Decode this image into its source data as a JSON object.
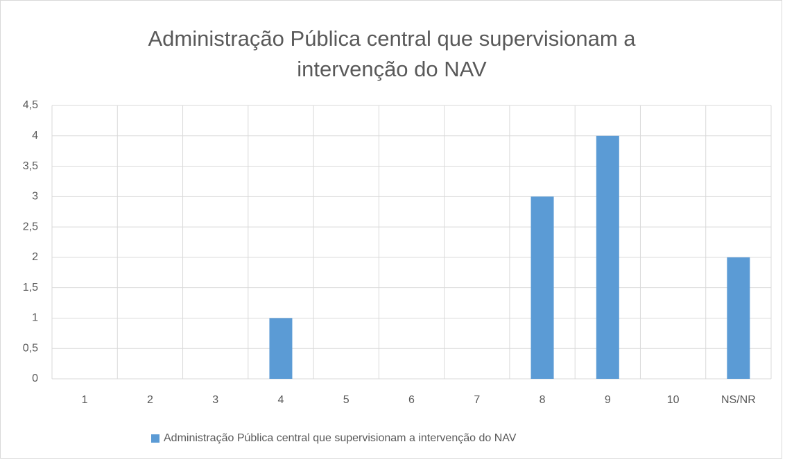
{
  "chart_data": {
    "type": "bar",
    "title": "Administração Pública central que supervisionam a intervenção do NAV",
    "categories": [
      "1",
      "2",
      "3",
      "4",
      "5",
      "6",
      "7",
      "8",
      "9",
      "10",
      "NS/NR"
    ],
    "series": [
      {
        "name": "Administração Pública central que supervisionam a intervenção do NAV",
        "color": "#5b9bd5",
        "values": [
          0,
          0,
          0,
          1,
          0,
          0,
          0,
          3,
          4,
          0,
          2
        ]
      }
    ],
    "ylim": [
      0,
      4.5
    ],
    "yticks": [
      0,
      {
        "value": 0.5,
        "label": "0,5"
      },
      1,
      {
        "value": 1.5,
        "label": "1,5"
      },
      2,
      {
        "value": 2.5,
        "label": "2,5"
      },
      3,
      {
        "value": 3.5,
        "label": "3,5"
      },
      4,
      {
        "value": 4.5,
        "label": "4,5"
      }
    ],
    "grid": true,
    "legend": "bottom"
  }
}
